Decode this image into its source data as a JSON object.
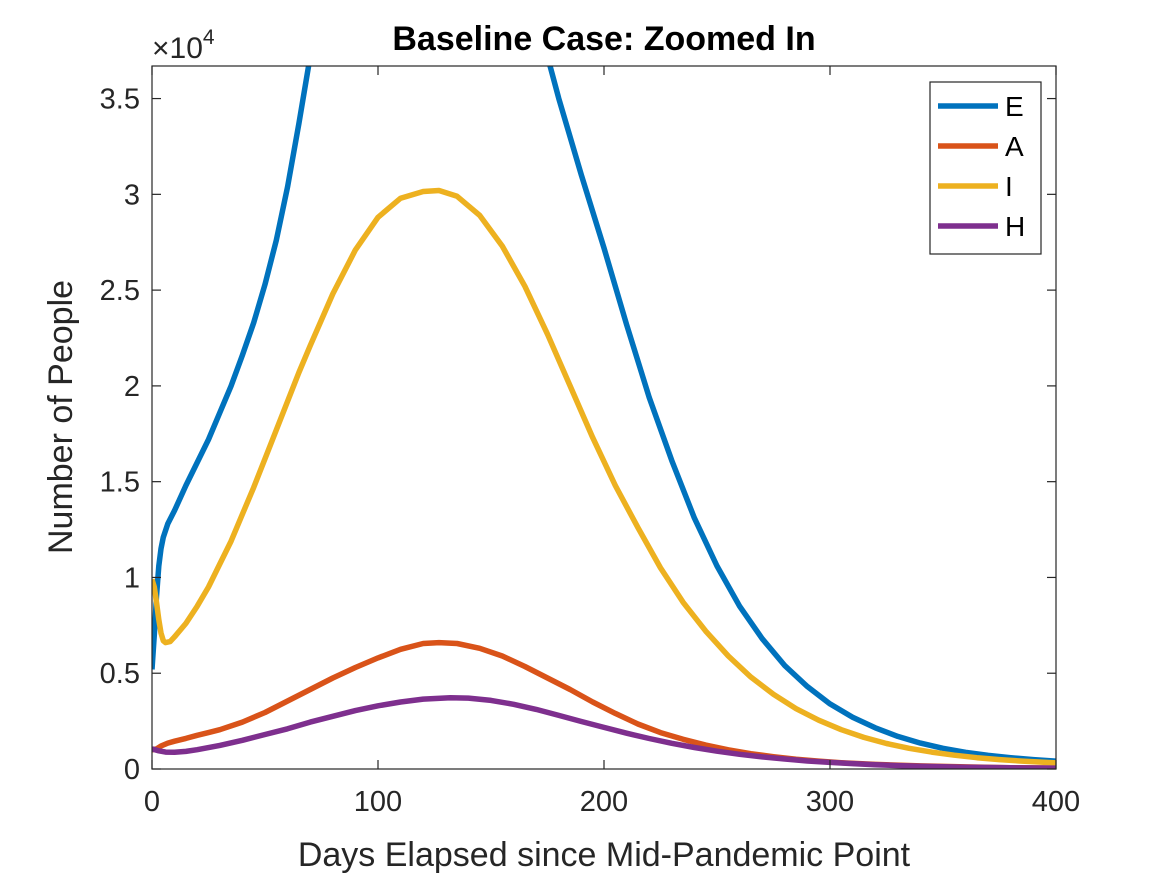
{
  "chart_data": {
    "type": "line",
    "title": "Baseline Case: Zoomed In",
    "xlabel": "Days Elapsed since Mid-Pandemic Point",
    "ylabel": "Number of People",
    "y_exponent_base": "10",
    "y_exponent_power": "4",
    "xlim": [
      0,
      400
    ],
    "ylim": [
      0,
      36700
    ],
    "x_ticks": [
      0,
      100,
      200,
      300,
      400
    ],
    "x_tick_labels": [
      "0",
      "100",
      "200",
      "300",
      "400"
    ],
    "y_ticks": [
      0,
      5000,
      10000,
      15000,
      20000,
      25000,
      30000,
      35000
    ],
    "y_tick_labels": [
      "0",
      "0.5",
      "1",
      "1.5",
      "2",
      "2.5",
      "3",
      "3.5"
    ],
    "grid": false,
    "legend_position": "top-right",
    "series": [
      {
        "name": "E",
        "color": "#0072BD",
        "points": [
          [
            0,
            5200
          ],
          [
            1,
            7000
          ],
          [
            2,
            9000
          ],
          [
            3,
            10600
          ],
          [
            4,
            11500
          ],
          [
            5,
            12100
          ],
          [
            7,
            12800
          ],
          [
            10,
            13500
          ],
          [
            15,
            14800
          ],
          [
            20,
            16000
          ],
          [
            25,
            17200
          ],
          [
            30,
            18600
          ],
          [
            35,
            20000
          ],
          [
            40,
            21600
          ],
          [
            45,
            23300
          ],
          [
            50,
            25300
          ],
          [
            55,
            27600
          ],
          [
            60,
            30400
          ],
          [
            65,
            33700
          ],
          [
            70,
            37200
          ],
          [
            175,
            37200
          ],
          [
            180,
            35000
          ],
          [
            190,
            31000
          ],
          [
            200,
            27200
          ],
          [
            210,
            23200
          ],
          [
            220,
            19400
          ],
          [
            230,
            16100
          ],
          [
            240,
            13100
          ],
          [
            250,
            10600
          ],
          [
            260,
            8500
          ],
          [
            270,
            6800
          ],
          [
            280,
            5400
          ],
          [
            290,
            4300
          ],
          [
            300,
            3400
          ],
          [
            310,
            2700
          ],
          [
            320,
            2150
          ],
          [
            330,
            1700
          ],
          [
            340,
            1350
          ],
          [
            350,
            1080
          ],
          [
            360,
            870
          ],
          [
            370,
            710
          ],
          [
            380,
            590
          ],
          [
            390,
            490
          ],
          [
            400,
            410
          ]
        ]
      },
      {
        "name": "A",
        "color": "#D95319",
        "points": [
          [
            0,
            1000
          ],
          [
            2,
            1050
          ],
          [
            4,
            1200
          ],
          [
            7,
            1350
          ],
          [
            10,
            1450
          ],
          [
            15,
            1600
          ],
          [
            20,
            1760
          ],
          [
            25,
            1900
          ],
          [
            30,
            2050
          ],
          [
            40,
            2450
          ],
          [
            50,
            2950
          ],
          [
            60,
            3550
          ],
          [
            70,
            4150
          ],
          [
            80,
            4750
          ],
          [
            90,
            5300
          ],
          [
            100,
            5800
          ],
          [
            110,
            6250
          ],
          [
            120,
            6550
          ],
          [
            127,
            6600
          ],
          [
            135,
            6550
          ],
          [
            145,
            6300
          ],
          [
            155,
            5900
          ],
          [
            165,
            5350
          ],
          [
            175,
            4750
          ],
          [
            185,
            4150
          ],
          [
            195,
            3500
          ],
          [
            205,
            2900
          ],
          [
            215,
            2350
          ],
          [
            225,
            1900
          ],
          [
            235,
            1550
          ],
          [
            245,
            1250
          ],
          [
            255,
            1000
          ],
          [
            265,
            800
          ],
          [
            275,
            640
          ],
          [
            285,
            510
          ],
          [
            295,
            410
          ],
          [
            305,
            330
          ],
          [
            320,
            240
          ],
          [
            340,
            160
          ],
          [
            360,
            110
          ],
          [
            380,
            70
          ],
          [
            400,
            50
          ]
        ]
      },
      {
        "name": "I",
        "color": "#EDB120",
        "points": [
          [
            0,
            9900
          ],
          [
            1,
            9500
          ],
          [
            2,
            8700
          ],
          [
            3,
            7800
          ],
          [
            4,
            7100
          ],
          [
            5,
            6700
          ],
          [
            6,
            6600
          ],
          [
            8,
            6650
          ],
          [
            10,
            6900
          ],
          [
            15,
            7600
          ],
          [
            20,
            8500
          ],
          [
            25,
            9500
          ],
          [
            30,
            10700
          ],
          [
            35,
            11900
          ],
          [
            40,
            13300
          ],
          [
            45,
            14700
          ],
          [
            50,
            16200
          ],
          [
            55,
            17700
          ],
          [
            60,
            19200
          ],
          [
            65,
            20700
          ],
          [
            70,
            22100
          ],
          [
            80,
            24800
          ],
          [
            90,
            27100
          ],
          [
            100,
            28800
          ],
          [
            110,
            29800
          ],
          [
            120,
            30150
          ],
          [
            127,
            30200
          ],
          [
            135,
            29900
          ],
          [
            145,
            28900
          ],
          [
            155,
            27300
          ],
          [
            165,
            25200
          ],
          [
            175,
            22700
          ],
          [
            185,
            20000
          ],
          [
            195,
            17300
          ],
          [
            205,
            14800
          ],
          [
            215,
            12600
          ],
          [
            225,
            10500
          ],
          [
            235,
            8700
          ],
          [
            245,
            7200
          ],
          [
            255,
            5900
          ],
          [
            265,
            4800
          ],
          [
            275,
            3900
          ],
          [
            285,
            3150
          ],
          [
            295,
            2550
          ],
          [
            305,
            2050
          ],
          [
            315,
            1650
          ],
          [
            325,
            1330
          ],
          [
            335,
            1080
          ],
          [
            345,
            880
          ],
          [
            355,
            720
          ],
          [
            365,
            590
          ],
          [
            375,
            490
          ],
          [
            385,
            410
          ],
          [
            400,
            320
          ]
        ]
      },
      {
        "name": "H",
        "color": "#7E2F8E",
        "points": [
          [
            0,
            1050
          ],
          [
            3,
            950
          ],
          [
            6,
            880
          ],
          [
            10,
            870
          ],
          [
            15,
            920
          ],
          [
            20,
            1010
          ],
          [
            30,
            1230
          ],
          [
            40,
            1500
          ],
          [
            50,
            1800
          ],
          [
            60,
            2100
          ],
          [
            70,
            2450
          ],
          [
            80,
            2750
          ],
          [
            90,
            3050
          ],
          [
            100,
            3300
          ],
          [
            110,
            3500
          ],
          [
            120,
            3650
          ],
          [
            132,
            3720
          ],
          [
            140,
            3700
          ],
          [
            150,
            3580
          ],
          [
            160,
            3380
          ],
          [
            170,
            3110
          ],
          [
            180,
            2800
          ],
          [
            190,
            2480
          ],
          [
            200,
            2170
          ],
          [
            210,
            1870
          ],
          [
            220,
            1590
          ],
          [
            230,
            1340
          ],
          [
            240,
            1120
          ],
          [
            250,
            930
          ],
          [
            260,
            770
          ],
          [
            270,
            630
          ],
          [
            280,
            520
          ],
          [
            290,
            420
          ],
          [
            300,
            345
          ],
          [
            310,
            280
          ],
          [
            320,
            225
          ],
          [
            330,
            180
          ],
          [
            340,
            145
          ],
          [
            350,
            118
          ],
          [
            360,
            95
          ],
          [
            370,
            78
          ],
          [
            380,
            64
          ],
          [
            390,
            53
          ],
          [
            400,
            45
          ]
        ]
      }
    ]
  }
}
